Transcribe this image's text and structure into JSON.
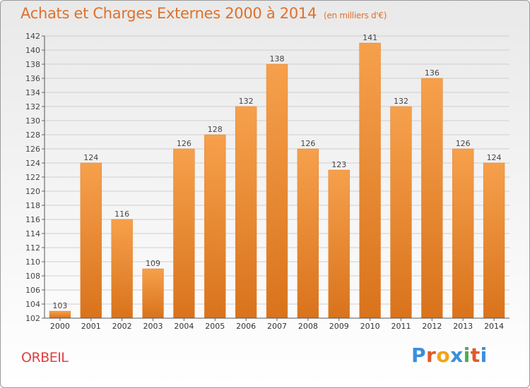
{
  "header": {
    "title": "Achats et Charges Externes 2000 à 2014",
    "unit": "(en milliers d'€)"
  },
  "footer": {
    "commune": "ORBEIL",
    "brand": "Proxiti",
    "brand_colors": [
      "#3b8fd9",
      "#e05a2b",
      "#f2a31a",
      "#3b8fd9",
      "#4caf50",
      "#e05a2b",
      "#3b8fd9"
    ]
  },
  "colors": {
    "bar_top": "#f6a04c",
    "bar_bottom": "#d9731c",
    "title": "#e0702a",
    "commune": "#e04040",
    "grid": "#cfcfcf"
  },
  "chart_data": {
    "type": "bar",
    "categories": [
      "2000",
      "2001",
      "2002",
      "2003",
      "2004",
      "2005",
      "2006",
      "2007",
      "2008",
      "2009",
      "2010",
      "2011",
      "2012",
      "2013",
      "2014"
    ],
    "values": [
      103,
      124,
      116,
      109,
      126,
      128,
      132,
      138,
      126,
      123,
      141,
      132,
      136,
      126,
      124
    ],
    "title": "Achats et Charges Externes 2000 à 2014",
    "xlabel": "",
    "ylabel": "",
    "ylim": [
      102,
      142
    ],
    "yticks": [
      102,
      104,
      106,
      108,
      110,
      112,
      114,
      116,
      118,
      120,
      122,
      124,
      126,
      128,
      130,
      132,
      134,
      136,
      138,
      140,
      142
    ],
    "grid": true,
    "data_labels": true
  }
}
